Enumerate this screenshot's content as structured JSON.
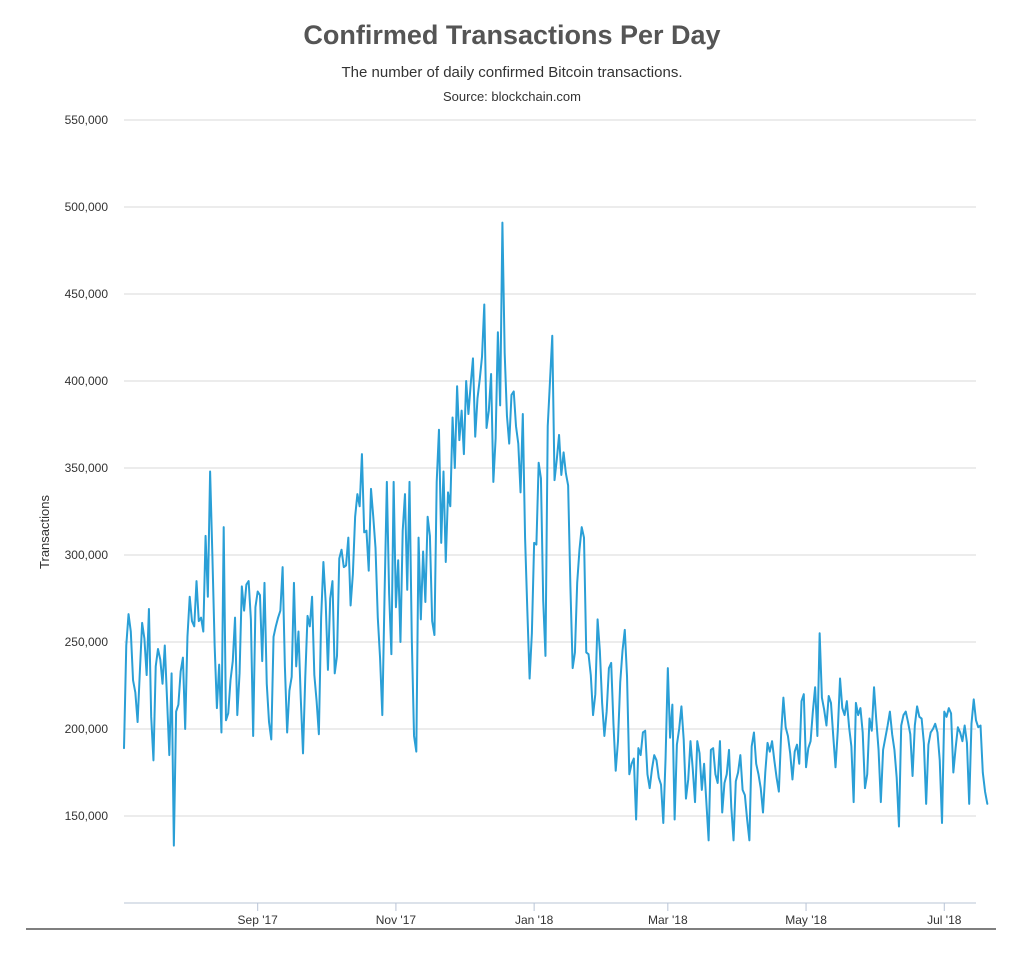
{
  "header": {
    "title": "Confirmed Transactions Per Day",
    "subtitle": "The number of daily confirmed Bitcoin transactions.",
    "source": "Source: blockchain.com"
  },
  "colors": {
    "line": "#2a9fd6",
    "grid": "#d8d8d8",
    "axis": "#b8c4d6"
  },
  "chart_data": {
    "type": "line",
    "title": "Confirmed Transactions Per Day",
    "ylabel": "Transactions",
    "xlabel": "",
    "ylim": [
      100000,
      550000
    ],
    "yticks": [
      150000,
      200000,
      250000,
      300000,
      350000,
      400000,
      450000,
      500000,
      550000
    ],
    "ytick_labels": [
      "150,000",
      "200,000",
      "250,000",
      "300,000",
      "350,000",
      "400,000",
      "450,000",
      "500,000",
      "550,000"
    ],
    "xlim": [
      "2017-07-04",
      "2018-07-15"
    ],
    "xticks": [
      {
        "label": "Sep '17",
        "date": "2017-09-01"
      },
      {
        "label": "Nov '17",
        "date": "2017-11-01"
      },
      {
        "label": "Jan '18",
        "date": "2018-01-01"
      },
      {
        "label": "Mar '18",
        "date": "2018-03-01"
      },
      {
        "label": "May '18",
        "date": "2018-05-01"
      },
      {
        "label": "Jul '18",
        "date": "2018-07-01"
      }
    ],
    "grid": true,
    "legend": "none",
    "series": [
      {
        "start_date": "2017-07-04",
        "interval_days": 1,
        "values": [
          189000,
          248000,
          266000,
          256000,
          228000,
          221000,
          204000,
          233000,
          261000,
          252000,
          231000,
          269000,
          207000,
          182000,
          236000,
          246000,
          240000,
          226000,
          248000,
          217000,
          185000,
          232000,
          133000,
          210000,
          214000,
          233000,
          241000,
          200000,
          253000,
          276000,
          262000,
          259000,
          285000,
          262000,
          264000,
          256000,
          311000,
          276000,
          348000,
          300000,
          248000,
          212000,
          237000,
          198000,
          316000,
          205000,
          209000,
          228000,
          239000,
          264000,
          208000,
          232000,
          282000,
          268000,
          283000,
          285000,
          263000,
          196000,
          270000,
          279000,
          277000,
          239000,
          284000,
          226000,
          204000,
          194000,
          253000,
          259000,
          264000,
          268000,
          293000,
          236000,
          198000,
          222000,
          230000,
          284000,
          236000,
          256000,
          218000,
          186000,
          230000,
          265000,
          259000,
          276000,
          231000,
          216000,
          197000,
          264000,
          296000,
          273000,
          234000,
          275000,
          285000,
          232000,
          242000,
          298000,
          303000,
          293000,
          294000,
          310000,
          271000,
          289000,
          322000,
          335000,
          328000,
          358000,
          313000,
          314000,
          291000,
          338000,
          322000,
          304000,
          264000,
          241000,
          208000,
          278000,
          342000,
          278000,
          243000,
          342000,
          270000,
          297000,
          250000,
          314000,
          335000,
          280000,
          342000,
          252000,
          196000,
          187000,
          310000,
          263000,
          302000,
          273000,
          322000,
          311000,
          262000,
          254000,
          342000,
          372000,
          307000,
          348000,
          296000,
          336000,
          328000,
          379000,
          350000,
          397000,
          366000,
          383000,
          358000,
          400000,
          381000,
          398000,
          413000,
          368000,
          390000,
          401000,
          414000,
          444000,
          373000,
          383000,
          404000,
          342000,
          367000,
          428000,
          386000,
          491000,
          416000,
          380000,
          364000,
          392000,
          394000,
          374000,
          364000,
          336000,
          381000,
          310000,
          268000,
          229000,
          255000,
          307000,
          306000,
          353000,
          344000,
          274000,
          242000,
          374000,
          400000,
          426000,
          343000,
          355000,
          369000,
          346000,
          359000,
          347000,
          340000,
          282000,
          235000,
          244000,
          284000,
          303000,
          316000,
          310000,
          244000,
          243000,
          231000,
          208000,
          220000,
          263000,
          245000,
          215000,
          196000,
          210000,
          235000,
          238000,
          203000,
          176000,
          193000,
          227000,
          245000,
          257000,
          230000,
          174000,
          180000,
          183000,
          148000,
          189000,
          185000,
          198000,
          199000,
          174000,
          166000,
          177000,
          185000,
          182000,
          172000,
          168000,
          146000,
          183000,
          235000,
          195000,
          214000,
          148000,
          191000,
          200000,
          213000,
          194000,
          160000,
          171000,
          193000,
          177000,
          158000,
          193000,
          186000,
          165000,
          180000,
          158000,
          136000,
          188000,
          189000,
          174000,
          169000,
          193000,
          152000,
          169000,
          174000,
          188000,
          155000,
          136000,
          170000,
          175000,
          185000,
          165000,
          162000,
          148000,
          136000,
          190000,
          198000,
          180000,
          174000,
          166000,
          152000,
          175000,
          192000,
          187000,
          193000,
          182000,
          172000,
          164000,
          197000,
          218000,
          201000,
          196000,
          186000,
          171000,
          187000,
          191000,
          180000,
          216000,
          220000,
          178000,
          189000,
          193000,
          210000,
          224000,
          196000,
          255000,
          218000,
          211000,
          202000,
          219000,
          215000,
          196000,
          178000,
          199000,
          229000,
          212000,
          208000,
          216000,
          201000,
          190000,
          158000,
          215000,
          208000,
          212000,
          198000,
          166000,
          174000,
          206000,
          199000,
          224000,
          205000,
          188000,
          158000,
          188000,
          195000,
          202000,
          210000,
          197000,
          188000,
          172000,
          144000,
          202000,
          208000,
          210000,
          204000,
          197000,
          173000,
          202000,
          213000,
          207000,
          206000,
          192000,
          157000,
          191000,
          198000,
          200000,
          203000,
          198000,
          182000,
          146000,
          210000,
          207000,
          212000,
          209000,
          175000,
          189000,
          201000,
          198000,
          193000,
          202000,
          192000,
          157000,
          203000,
          217000,
          205000,
          201000,
          202000,
          175000,
          164000,
          157000
        ]
      }
    ]
  }
}
